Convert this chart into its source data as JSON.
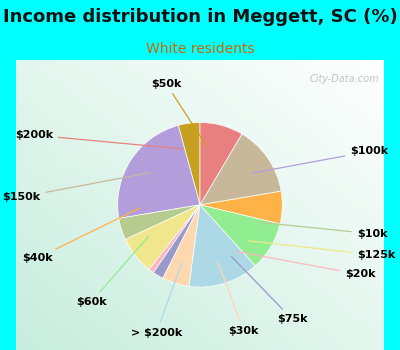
{
  "title": "Income distribution in Meggett, SC (%)",
  "subtitle": "White residents",
  "watermark": "© City-Data.com",
  "background_outer": "#00FFFF",
  "background_inner_top": "#ffffff",
  "background_inner_bottom": "#c8eedd",
  "labels": [
    "$50k",
    "$100k",
    "$10k",
    "$125k",
    "$20k",
    "$75k",
    "$30k",
    "> $200k",
    "$60k",
    "$40k",
    "$150k",
    "$200k"
  ],
  "values": [
    4,
    22,
    4,
    7,
    1,
    2,
    5,
    13,
    9,
    6,
    13,
    8
  ],
  "colors": [
    "#c8a020",
    "#b39ddb",
    "#b5cc8e",
    "#f0e68c",
    "#ffb6c1",
    "#9999cc",
    "#ffd8b0",
    "#add8e6",
    "#90ee90",
    "#ffb347",
    "#c8b89a",
    "#e88080"
  ],
  "label_fontsize": 8,
  "title_fontsize": 13,
  "subtitle_fontsize": 10,
  "subtitle_color": "#cc6600",
  "title_color": "#111111"
}
